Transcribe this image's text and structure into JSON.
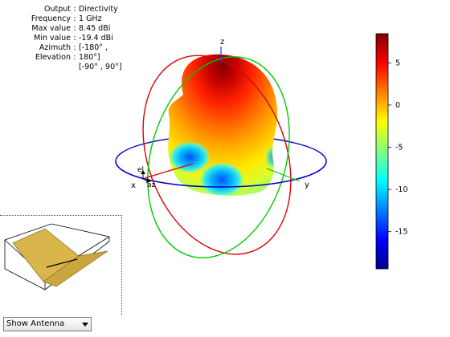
{
  "info": {
    "rows": [
      {
        "label": "Output",
        "value": "Directivity"
      },
      {
        "label": "Frequency",
        "value": "1 GHz"
      },
      {
        "label": "Max value",
        "value": "8.45 dBi"
      },
      {
        "label": "Min value",
        "value": "-19.4 dBi"
      },
      {
        "label": "Azimuth",
        "value": "[-180° ,"
      },
      {
        "label": "Elevation",
        "value": "180°]"
      }
    ],
    "elevation_range": "[-90° , 90°]"
  },
  "axes": {
    "z": "z",
    "x": "x",
    "y": "y",
    "el": "el",
    "az": "az"
  },
  "colorbar": {
    "ticks": [
      "5",
      "0",
      "-5",
      "-10",
      "-15"
    ],
    "tick_values": [
      5,
      0,
      -5,
      -10,
      -15
    ],
    "range": [
      -19.4,
      8.45
    ],
    "colormap": "jet"
  },
  "colors": {
    "azimuth_ring": "#0000cc",
    "elevation_ring_xz": "#dd0000",
    "elevation_ring_yz": "#00cc00",
    "antenna": "#d8b64c"
  },
  "antenna_control": {
    "selected": "Show Antenna"
  }
}
